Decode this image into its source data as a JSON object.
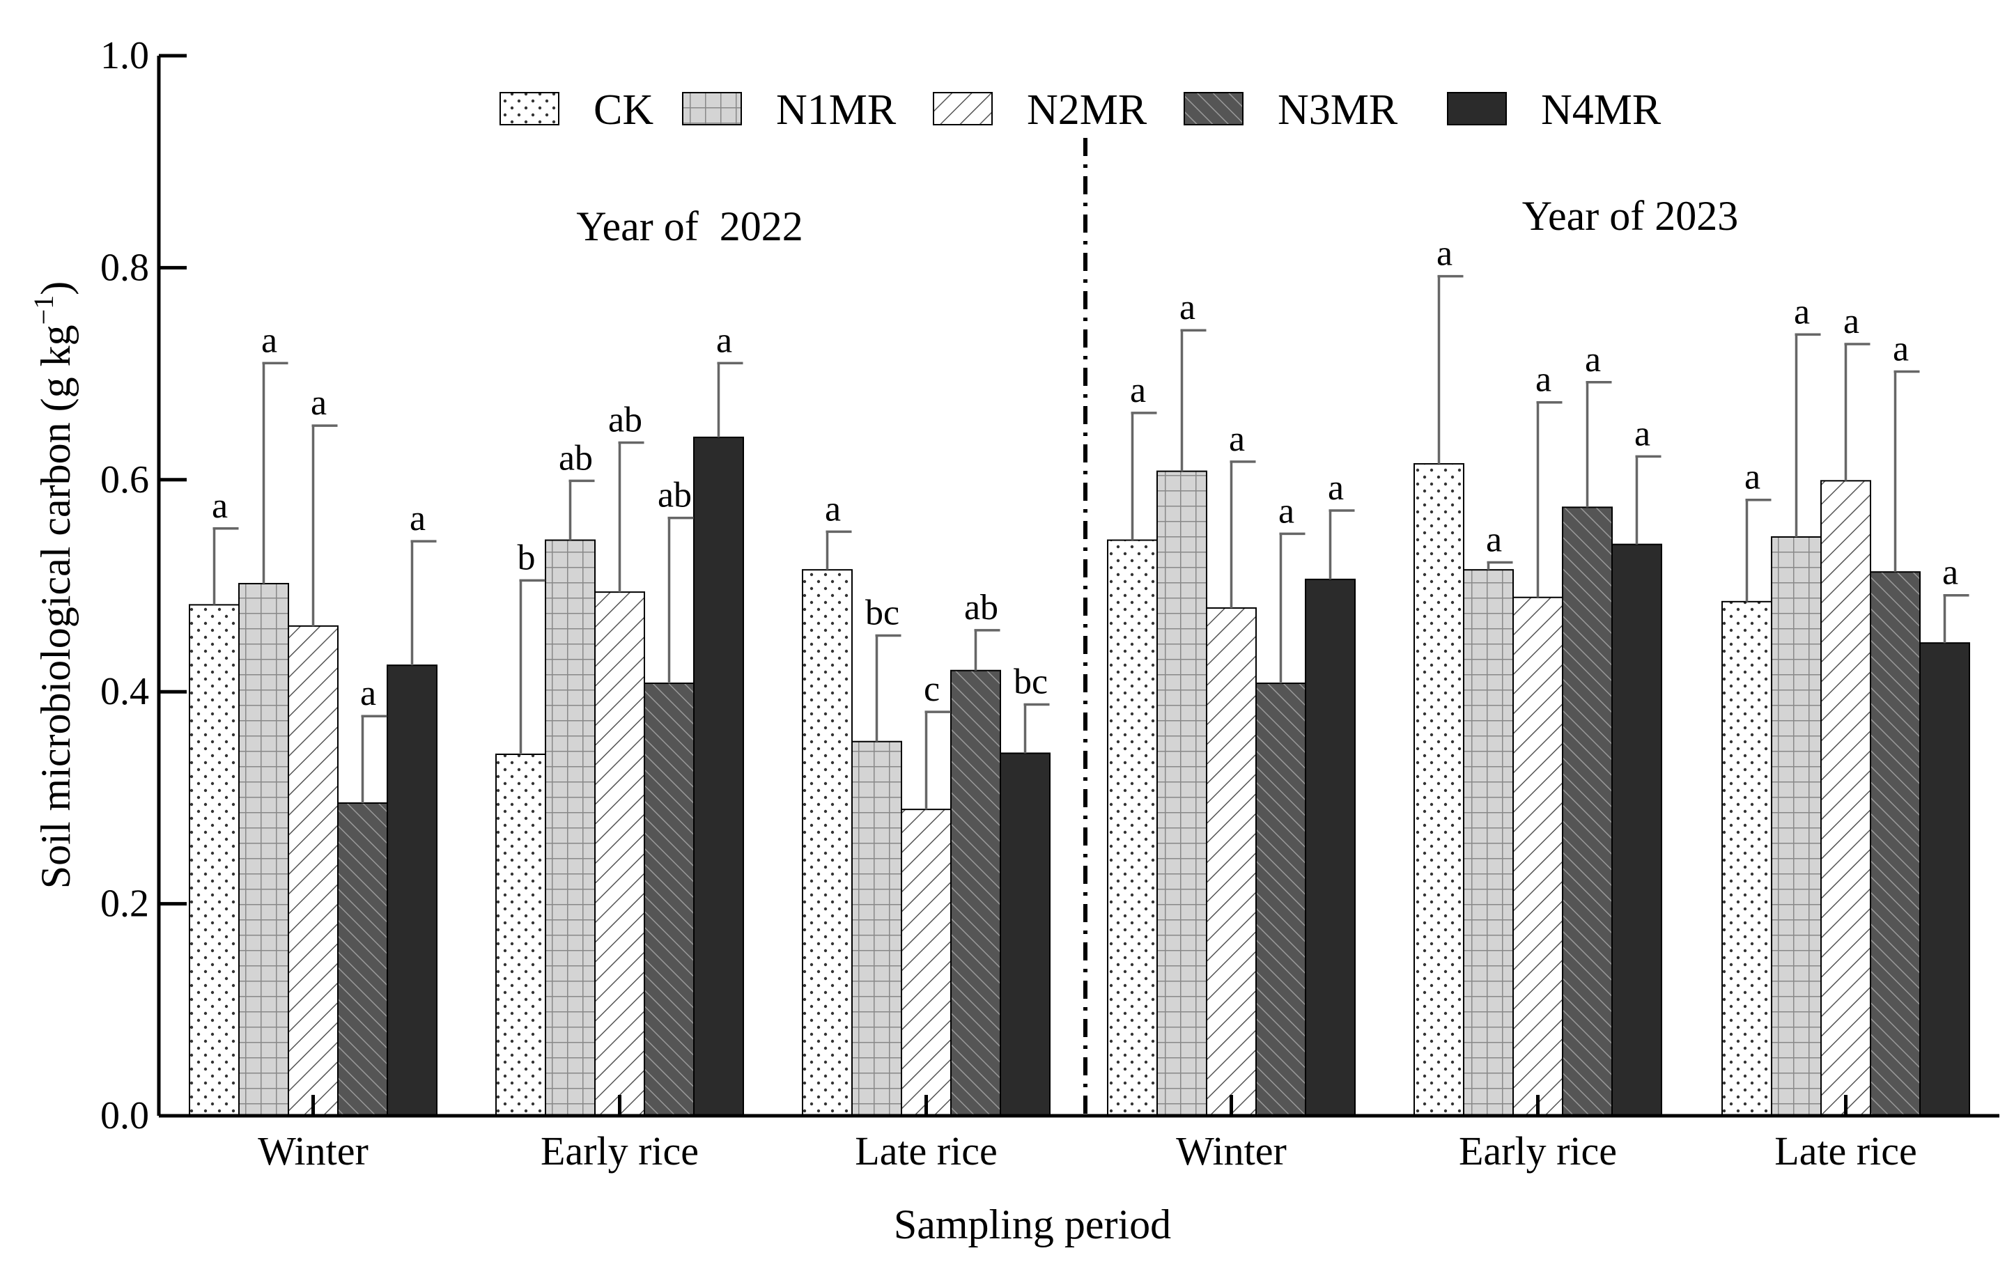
{
  "chart_data": {
    "type": "bar",
    "title": "",
    "xlabel": "Sampling period",
    "ylabel": "Soil microbiological carbon (g kg",
    "ylabel_sup": "−1",
    "ylabel_close": ")",
    "ylim": [
      0,
      1.0
    ],
    "yticks": [
      "0.0",
      "0.2",
      "0.4",
      "0.6",
      "0.8",
      "1.0"
    ],
    "ytick_values": [
      0,
      0.2,
      0.4,
      0.6,
      0.8,
      1.0
    ],
    "categories": [
      "Winter",
      "Early rice",
      "Late rice",
      "Winter",
      "Early rice",
      "Late rice"
    ],
    "year_labels": [
      "Year of  2022",
      "Year of 2023"
    ],
    "series": [
      {
        "name": "CK",
        "pattern": "dots",
        "values": [
          0.482,
          0.341,
          0.515,
          0.543,
          0.615,
          0.485
        ],
        "errors": [
          0.072,
          0.164,
          0.036,
          0.12,
          0.177,
          0.096
        ],
        "letters": [
          "a",
          "b",
          "a",
          "a",
          "a",
          "a"
        ]
      },
      {
        "name": "N1MR",
        "pattern": "grid",
        "values": [
          0.502,
          0.543,
          0.353,
          0.608,
          0.515,
          0.546
        ],
        "errors": [
          0.208,
          0.056,
          0.1,
          0.133,
          0.007,
          0.191
        ],
        "letters": [
          "a",
          "ab",
          "bc",
          "a",
          "a",
          "a"
        ]
      },
      {
        "name": "N2MR",
        "pattern": "hatch-light",
        "values": [
          0.462,
          0.494,
          0.289,
          0.479,
          0.489,
          0.599
        ],
        "errors": [
          0.189,
          0.141,
          0.092,
          0.138,
          0.184,
          0.129
        ],
        "letters": [
          "a",
          "ab",
          "c",
          "a",
          "a",
          "a"
        ]
      },
      {
        "name": "N3MR",
        "pattern": "hatch-dark",
        "values": [
          0.295,
          0.408,
          0.42,
          0.408,
          0.574,
          0.513
        ],
        "errors": [
          0.082,
          0.156,
          0.038,
          0.141,
          0.118,
          0.189
        ],
        "letters": [
          "a",
          "ab",
          "ab",
          "a",
          "a",
          "a"
        ]
      },
      {
        "name": "N4MR",
        "pattern": "solid",
        "values": [
          0.425,
          0.64,
          0.342,
          0.506,
          0.539,
          0.446
        ],
        "errors": [
          0.117,
          0.07,
          0.046,
          0.065,
          0.083,
          0.045
        ],
        "letters": [
          "a",
          "a",
          "bc",
          "a",
          "a",
          "a"
        ]
      }
    ],
    "legend_placement": "top-center",
    "grid": false
  },
  "colors": {
    "axis": "#000000",
    "error_bar": "#666666",
    "CK": "#ffffff",
    "N1MR": "#d4d4d4",
    "N2MR": "#ffffff",
    "N3MR": "#555555",
    "N4MR": "#2b2b2b"
  }
}
